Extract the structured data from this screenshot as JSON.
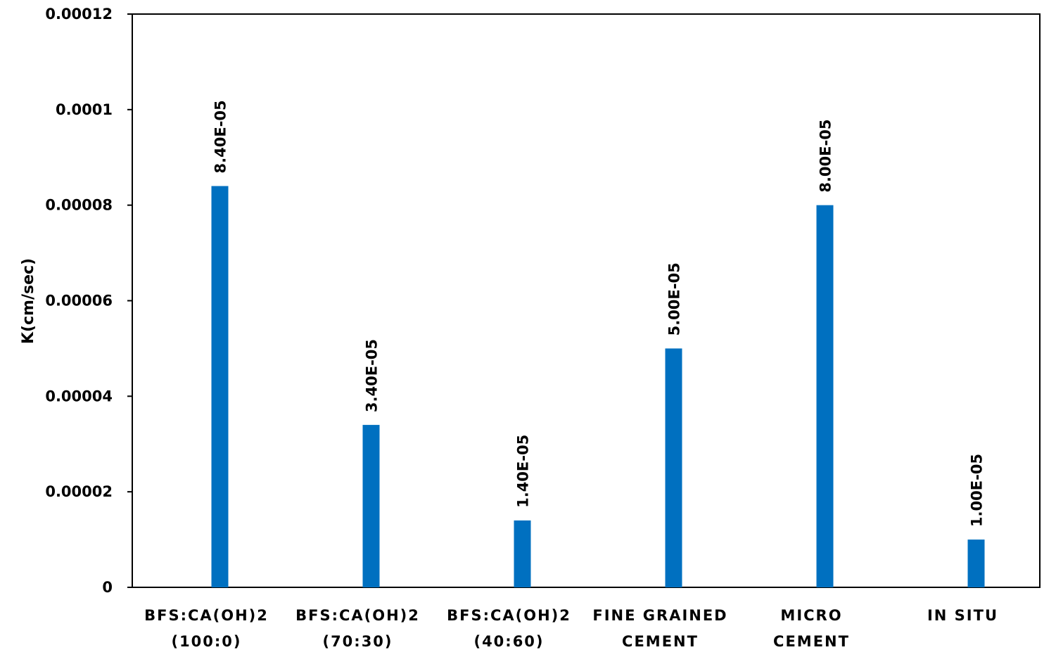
{
  "chart_data": {
    "type": "bar",
    "title": "",
    "xlabel": "",
    "ylabel": "K(cm/sec)",
    "ylim": [
      0,
      0.00012
    ],
    "yticks": [
      "0",
      "0.00002",
      "0.00004",
      "0.00006",
      "0.00008",
      "0.0001",
      "0.00012"
    ],
    "ytick_values": [
      0,
      2e-05,
      4e-05,
      6e-05,
      8e-05,
      0.0001,
      0.00012
    ],
    "categories": [
      [
        "BFS:CA(OH)2",
        "(100:0)"
      ],
      [
        "BFS:CA(OH)2",
        "(70:30)"
      ],
      [
        "BFS:CA(OH)2",
        "(40:60)"
      ],
      [
        "FINE GRAINED",
        "CEMENT"
      ],
      [
        "MICRO",
        "CEMENT"
      ],
      [
        "IN SITU"
      ]
    ],
    "values": [
      8.4e-05,
      3.4e-05,
      1.4e-05,
      5e-05,
      8e-05,
      1e-05
    ],
    "value_labels": [
      "8.40E-05",
      "3.40E-05",
      "1.40E-05",
      "5.00E-05",
      "8.00E-05",
      "1.00E-05"
    ],
    "bar_color": "#0070C0",
    "grid": false,
    "legend": false
  }
}
